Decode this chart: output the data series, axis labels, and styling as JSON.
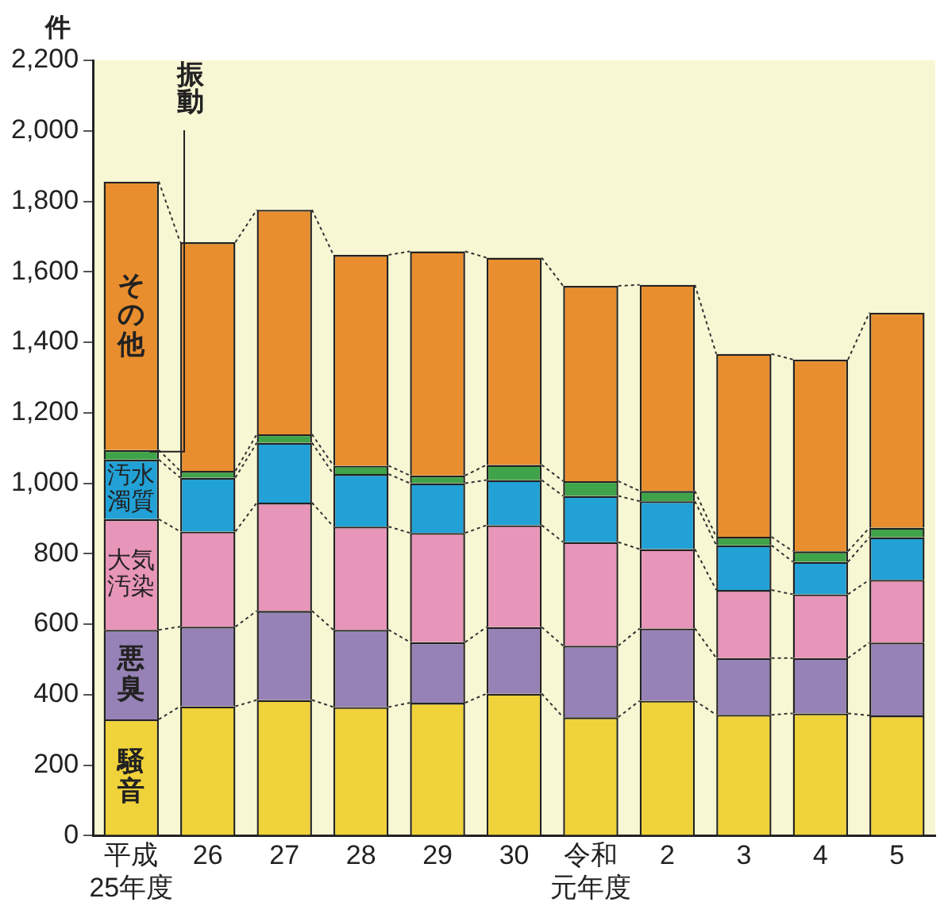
{
  "chart_data": {
    "type": "bar",
    "stacked": true,
    "ylabel": "件",
    "categories": [
      "平成25年度",
      "26",
      "27",
      "28",
      "29",
      "30",
      "令和元年度",
      "2",
      "3",
      "4",
      "5"
    ],
    "series": [
      {
        "name": "騒音",
        "color": "#f0d23a",
        "values": [
          330,
          367,
          385,
          365,
          377,
          403,
          336,
          383,
          343,
          347,
          341
        ]
      },
      {
        "name": "悪臭",
        "color": "#9682b6",
        "values": [
          254,
          226,
          253,
          219,
          172,
          189,
          203,
          205,
          161,
          157,
          207
        ]
      },
      {
        "name": "大気汚染",
        "color": "#e795b8",
        "values": [
          314,
          270,
          307,
          293,
          310,
          289,
          294,
          225,
          193,
          181,
          178
        ]
      },
      {
        "name": "汚水濁質",
        "color": "#22a1d6",
        "values": [
          169,
          153,
          170,
          149,
          141,
          128,
          131,
          136,
          127,
          92,
          121
        ]
      },
      {
        "name": "振動",
        "color": "#3fa34a",
        "values": [
          27,
          19,
          24,
          24,
          22,
          43,
          42,
          29,
          24,
          30,
          27
        ]
      },
      {
        "name": "その他",
        "color": "#e98e2e",
        "values": [
          762,
          649,
          637,
          598,
          636,
          588,
          554,
          585,
          519,
          544,
          610
        ]
      }
    ],
    "ylim": [
      0,
      2200
    ],
    "yticks": [
      {
        "value": 0,
        "label": "0"
      },
      {
        "value": 200,
        "label": "200"
      },
      {
        "value": 400,
        "label": "400"
      },
      {
        "value": 600,
        "label": "600"
      },
      {
        "value": 800,
        "label": "800"
      },
      {
        "value": 1000,
        "label": "1,000"
      },
      {
        "value": 1200,
        "label": "1,200"
      },
      {
        "value": 1400,
        "label": "1,400"
      },
      {
        "value": 1600,
        "label": "1,600"
      },
      {
        "value": 1800,
        "label": "1,800"
      },
      {
        "value": 2000,
        "label": "2,000"
      },
      {
        "value": 2200,
        "label": "2,200"
      }
    ],
    "grid": false,
    "legend": false
  }
}
